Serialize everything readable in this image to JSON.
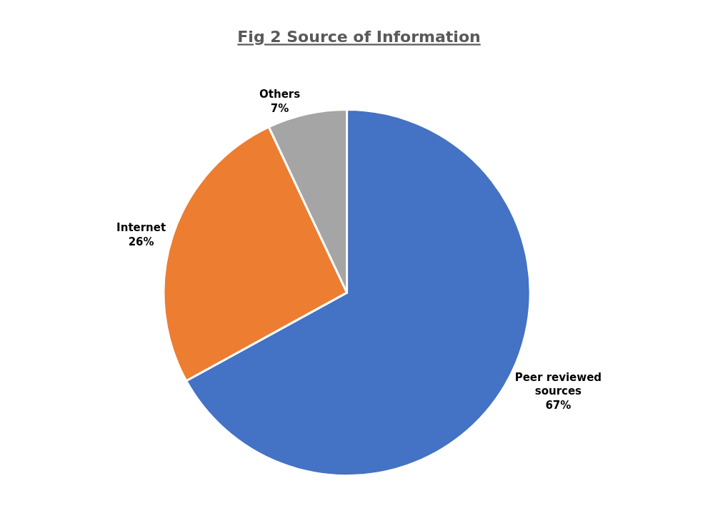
{
  "chart_data": {
    "type": "pie",
    "title": "Fig 2 Source of Information",
    "categories": [
      "Peer reviewed sources",
      "Internet",
      "Others"
    ],
    "values": [
      67,
      26,
      7
    ],
    "colors": [
      "#4472c4",
      "#ed7d31",
      "#a5a5a5"
    ],
    "value_labels": [
      "67%",
      "26%",
      "7%"
    ],
    "legend": false
  }
}
